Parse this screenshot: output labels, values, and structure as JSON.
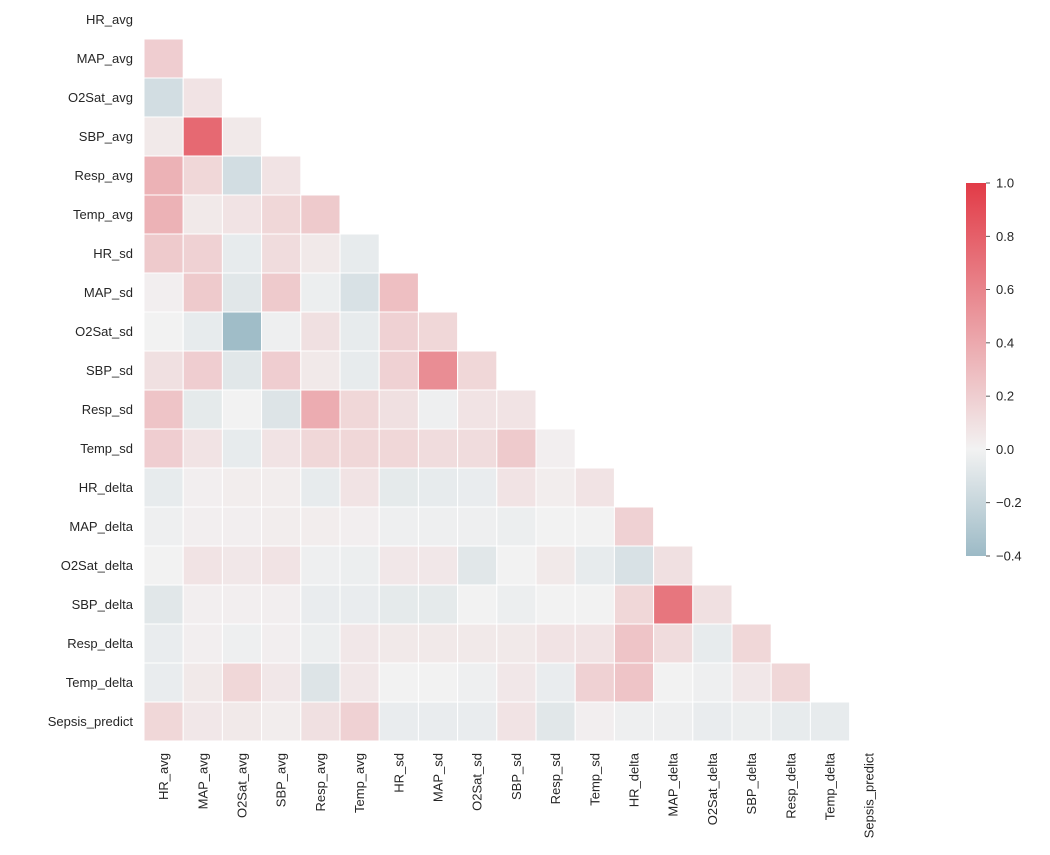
{
  "chart_data": {
    "type": "heatmap",
    "title": "",
    "xlabel": "",
    "ylabel": "",
    "variables": [
      "HR_avg",
      "MAP_avg",
      "O2Sat_avg",
      "SBP_avg",
      "Resp_avg",
      "Temp_avg",
      "HR_sd",
      "MAP_sd",
      "O2Sat_sd",
      "SBP_sd",
      "Resp_sd",
      "Temp_sd",
      "HR_delta",
      "MAP_delta",
      "O2Sat_delta",
      "SBP_delta",
      "Resp_delta",
      "Temp_delta",
      "Sepsis_predict"
    ],
    "mask": "upper-triangle-including-diagonal",
    "matrix": [
      [
        null,
        null,
        null,
        null,
        null,
        null,
        null,
        null,
        null,
        null,
        null,
        null,
        null,
        null,
        null,
        null,
        null,
        null,
        null
      ],
      [
        0.2,
        null,
        null,
        null,
        null,
        null,
        null,
        null,
        null,
        null,
        null,
        null,
        null,
        null,
        null,
        null,
        null,
        null,
        null
      ],
      [
        -0.15,
        0.08,
        null,
        null,
        null,
        null,
        null,
        null,
        null,
        null,
        null,
        null,
        null,
        null,
        null,
        null,
        null,
        null,
        null
      ],
      [
        0.05,
        0.75,
        0.05,
        null,
        null,
        null,
        null,
        null,
        null,
        null,
        null,
        null,
        null,
        null,
        null,
        null,
        null,
        null,
        null
      ],
      [
        0.35,
        0.15,
        -0.15,
        0.08,
        null,
        null,
        null,
        null,
        null,
        null,
        null,
        null,
        null,
        null,
        null,
        null,
        null,
        null,
        null
      ],
      [
        0.35,
        0.05,
        0.08,
        0.15,
        0.22,
        null,
        null,
        null,
        null,
        null,
        null,
        null,
        null,
        null,
        null,
        null,
        null,
        null,
        null
      ],
      [
        0.22,
        0.18,
        -0.05,
        0.12,
        0.05,
        -0.05,
        null,
        null,
        null,
        null,
        null,
        null,
        null,
        null,
        null,
        null,
        null,
        null,
        null
      ],
      [
        0.02,
        0.22,
        -0.08,
        0.22,
        -0.03,
        -0.12,
        0.28,
        null,
        null,
        null,
        null,
        null,
        null,
        null,
        null,
        null,
        null,
        null,
        null
      ],
      [
        0.0,
        -0.05,
        -0.38,
        -0.02,
        0.1,
        -0.05,
        0.18,
        0.15,
        null,
        null,
        null,
        null,
        null,
        null,
        null,
        null,
        null,
        null,
        null
      ],
      [
        0.1,
        0.2,
        -0.08,
        0.2,
        0.05,
        -0.05,
        0.18,
        0.55,
        0.15,
        null,
        null,
        null,
        null,
        null,
        null,
        null,
        null,
        null,
        null
      ],
      [
        0.25,
        -0.06,
        0.0,
        -0.1,
        0.38,
        0.15,
        0.1,
        -0.02,
        0.08,
        0.08,
        null,
        null,
        null,
        null,
        null,
        null,
        null,
        null,
        null
      ],
      [
        0.2,
        0.08,
        -0.05,
        0.08,
        0.15,
        0.15,
        0.15,
        0.12,
        0.12,
        0.22,
        0.02,
        null,
        null,
        null,
        null,
        null,
        null,
        null,
        null
      ],
      [
        -0.05,
        0.02,
        0.03,
        0.03,
        -0.05,
        0.08,
        -0.06,
        -0.05,
        -0.04,
        0.08,
        0.03,
        0.08,
        null,
        null,
        null,
        null,
        null,
        null,
        null
      ],
      [
        -0.02,
        0.02,
        0.02,
        0.03,
        0.03,
        0.02,
        -0.02,
        -0.02,
        -0.02,
        -0.03,
        0.0,
        0.0,
        0.18,
        null,
        null,
        null,
        null,
        null,
        null
      ],
      [
        0.0,
        0.08,
        0.06,
        0.08,
        -0.02,
        -0.03,
        0.06,
        0.06,
        -0.08,
        0.0,
        0.05,
        -0.05,
        -0.12,
        0.1,
        null,
        null,
        null,
        null,
        null
      ],
      [
        -0.08,
        0.02,
        0.02,
        0.02,
        -0.04,
        -0.04,
        -0.06,
        -0.06,
        0.0,
        -0.03,
        0.0,
        0.0,
        0.15,
        0.68,
        0.1,
        null,
        null,
        null,
        null
      ],
      [
        -0.04,
        0.02,
        -0.02,
        0.02,
        -0.03,
        0.06,
        0.05,
        0.05,
        0.05,
        0.05,
        0.08,
        0.08,
        0.25,
        0.12,
        -0.05,
        0.15,
        null,
        null,
        null
      ],
      [
        -0.04,
        0.05,
        0.15,
        0.06,
        -0.1,
        0.06,
        0.0,
        0.0,
        -0.02,
        0.06,
        -0.04,
        0.18,
        0.25,
        0.0,
        -0.02,
        0.06,
        0.15,
        null,
        null
      ],
      [
        0.15,
        0.06,
        0.05,
        0.03,
        0.1,
        0.18,
        -0.04,
        -0.04,
        -0.04,
        0.08,
        -0.08,
        0.02,
        -0.02,
        -0.02,
        -0.04,
        -0.03,
        -0.05,
        -0.05,
        null
      ]
    ],
    "colorbar": {
      "vmin": -0.4,
      "vmax": 1.0,
      "ticks": [
        "1.0",
        "0.8",
        "0.6",
        "0.4",
        "0.2",
        "0.0",
        "−0.2",
        "−0.4"
      ],
      "tick_values": [
        1.0,
        0.8,
        0.6,
        0.4,
        0.2,
        0.0,
        -0.2,
        -0.4
      ],
      "colormap": "diverging blue-white-red",
      "color_neg": "#9cbac6",
      "color_mid": "#f2f2f2",
      "color_pos": "#e23b47"
    },
    "grid": false
  }
}
